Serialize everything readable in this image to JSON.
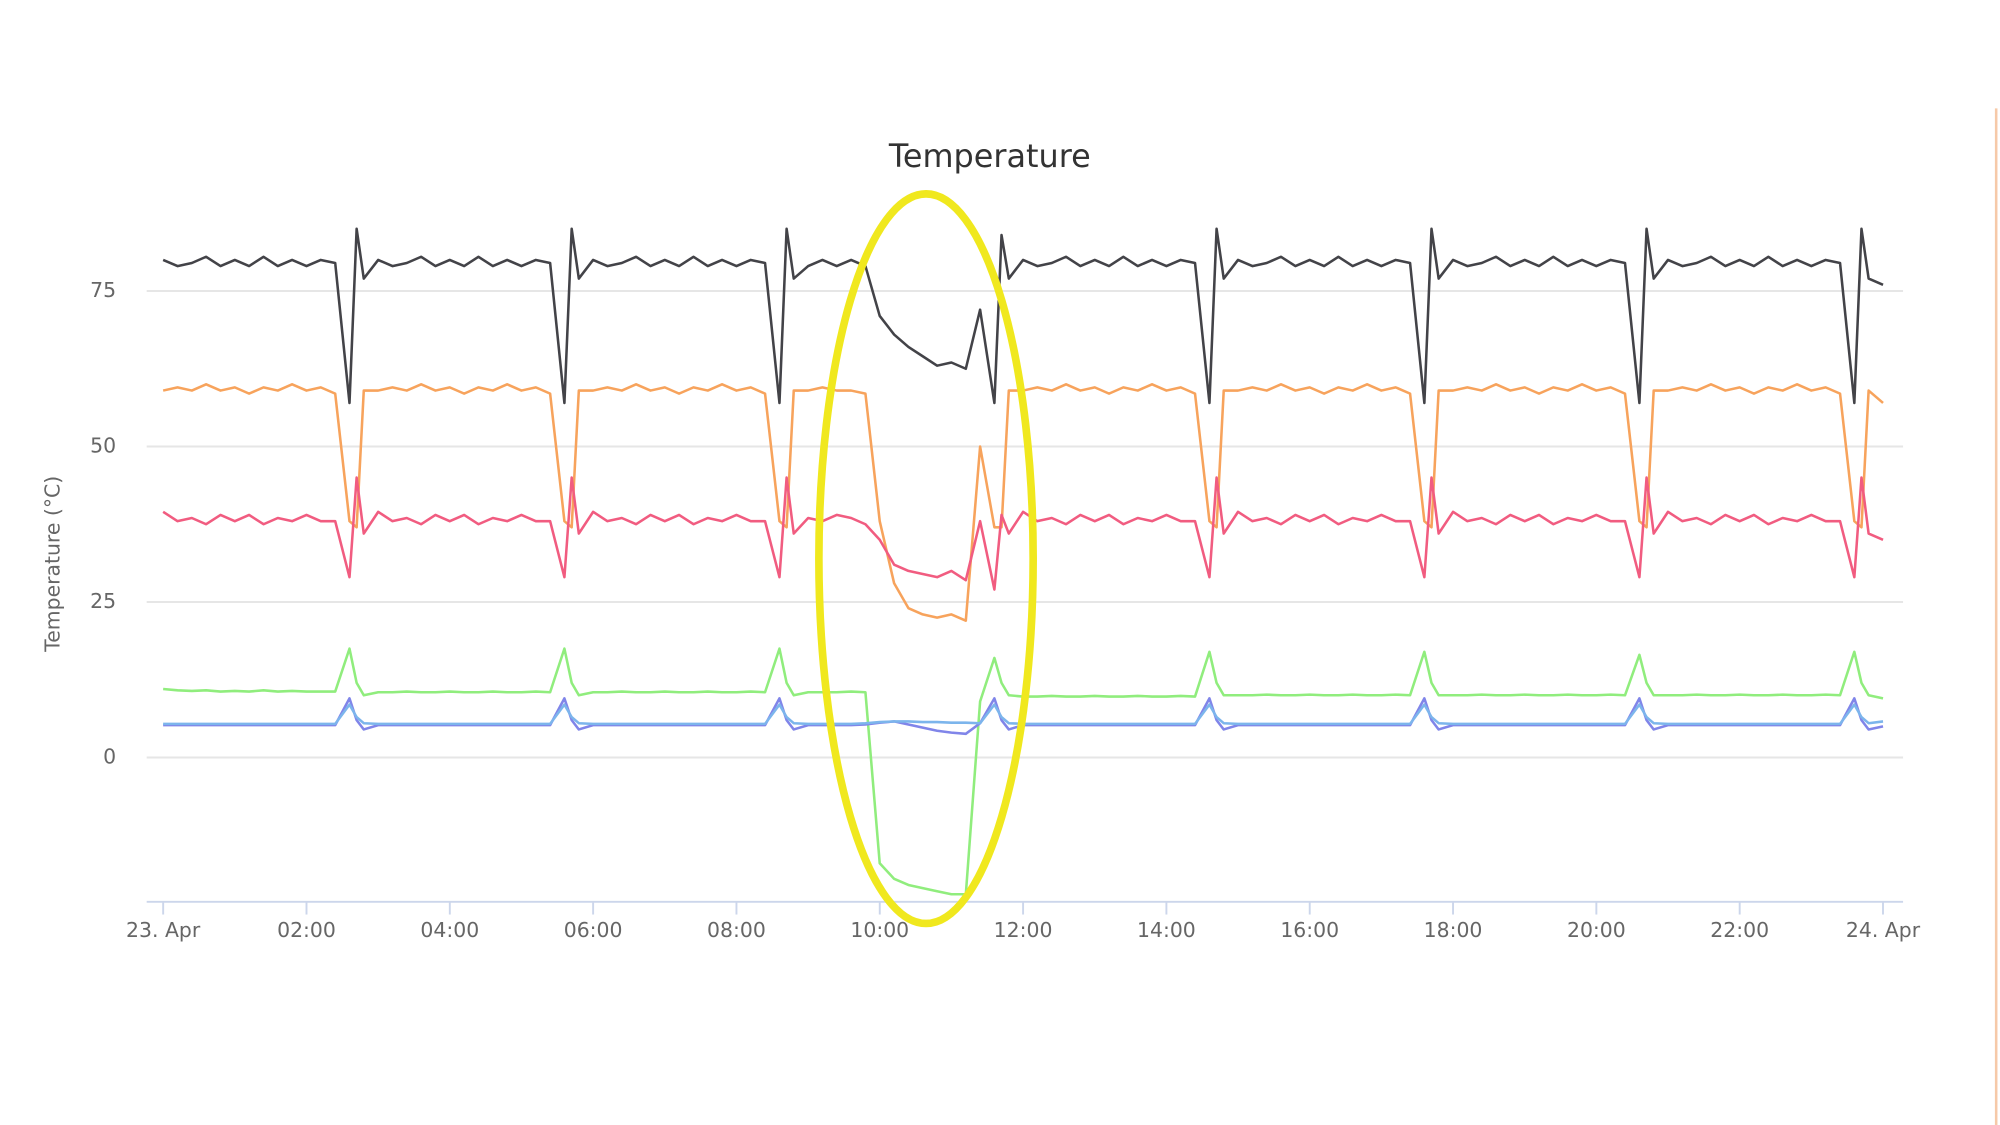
{
  "chart_data": {
    "type": "line",
    "title": "Temperature",
    "y_label": "Temperature (°C)",
    "x": [
      0,
      0.2,
      0.4,
      0.6,
      0.8,
      1,
      1.2,
      1.4,
      1.6,
      1.8,
      2,
      2.2,
      2.4,
      2.6,
      2.7,
      2.8,
      3,
      3.2,
      3.4,
      3.6,
      3.8,
      4,
      4.2,
      4.4,
      4.6,
      4.8,
      5,
      5.2,
      5.4,
      5.6,
      5.7,
      5.8,
      6,
      6.2,
      6.4,
      6.6,
      6.8,
      7,
      7.2,
      7.4,
      7.6,
      7.8,
      8,
      8.2,
      8.4,
      8.6,
      8.7,
      8.8,
      9,
      9.2,
      9.4,
      9.6,
      9.8,
      10,
      10.2,
      10.4,
      10.6,
      10.8,
      11,
      11.2,
      11.4,
      11.6,
      11.7,
      11.8,
      12,
      12.2,
      12.4,
      12.6,
      12.8,
      13,
      13.2,
      13.4,
      13.6,
      13.8,
      14,
      14.2,
      14.4,
      14.6,
      14.7,
      14.8,
      15,
      15.2,
      15.4,
      15.6,
      15.8,
      16,
      16.2,
      16.4,
      16.6,
      16.8,
      17,
      17.2,
      17.4,
      17.6,
      17.7,
      17.8,
      18,
      18.2,
      18.4,
      18.6,
      18.8,
      19,
      19.2,
      19.4,
      19.6,
      19.8,
      20,
      20.2,
      20.4,
      20.6,
      20.7,
      20.8,
      21,
      21.2,
      21.4,
      21.6,
      21.8,
      22,
      22.2,
      22.4,
      22.6,
      22.8,
      23,
      23.2,
      23.4,
      23.6,
      23.7,
      23.8,
      24
    ],
    "series": [
      {
        "color": "#434348",
        "values": [
          80,
          79,
          79.5,
          80.5,
          79,
          80,
          79,
          80.5,
          79,
          80,
          79,
          80,
          79.5,
          57,
          85,
          77,
          80,
          79,
          79.5,
          80.5,
          79,
          80,
          79,
          80.5,
          79,
          80,
          79,
          80,
          79.5,
          57,
          85,
          77,
          80,
          79,
          79.5,
          80.5,
          79,
          80,
          79,
          80.5,
          79,
          80,
          79,
          80,
          79.5,
          57,
          85,
          77,
          79,
          80,
          79,
          80,
          79,
          71,
          68,
          66,
          64.5,
          63,
          63.5,
          62.5,
          72,
          57,
          84,
          77,
          80,
          79,
          79.5,
          80.5,
          79,
          80,
          79,
          80.5,
          79,
          80,
          79,
          80,
          79.5,
          57,
          85,
          77,
          80,
          79,
          79.5,
          80.5,
          79,
          80,
          79,
          80.5,
          79,
          80,
          79,
          80,
          79.5,
          57,
          85,
          77,
          80,
          79,
          79.5,
          80.5,
          79,
          80,
          79,
          80.5,
          79,
          80,
          79,
          80,
          79.5,
          57,
          85,
          77,
          80,
          79,
          79.5,
          80.5,
          79,
          80,
          79,
          80.5,
          79,
          80,
          79,
          80,
          79.5,
          57,
          85,
          77,
          76
        ]
      },
      {
        "color": "#f7a35c",
        "values": [
          59,
          59.5,
          59,
          60,
          59,
          59.5,
          58.5,
          59.5,
          59,
          60,
          59,
          59.5,
          58.5,
          38,
          37,
          59,
          59,
          59.5,
          59,
          60,
          59,
          59.5,
          58.5,
          59.5,
          59,
          60,
          59,
          59.5,
          58.5,
          38,
          37,
          59,
          59,
          59.5,
          59,
          60,
          59,
          59.5,
          58.5,
          59.5,
          59,
          60,
          59,
          59.5,
          58.5,
          38,
          37,
          59,
          59,
          59.5,
          59,
          59,
          58.5,
          38,
          28,
          24,
          23,
          22.5,
          23,
          22,
          50,
          37,
          37,
          59,
          59,
          59.5,
          59,
          60,
          59,
          59.5,
          58.5,
          59.5,
          59,
          60,
          59,
          59.5,
          58.5,
          38,
          37,
          59,
          59,
          59.5,
          59,
          60,
          59,
          59.5,
          58.5,
          59.5,
          59,
          60,
          59,
          59.5,
          58.5,
          38,
          37,
          59,
          59,
          59.5,
          59,
          60,
          59,
          59.5,
          58.5,
          59.5,
          59,
          60,
          59,
          59.5,
          58.5,
          38,
          37,
          59,
          59,
          59.5,
          59,
          60,
          59,
          59.5,
          58.5,
          59.5,
          59,
          60,
          59,
          59.5,
          58.5,
          38,
          37,
          59,
          57
        ]
      },
      {
        "color": "#f15c80",
        "values": [
          39.5,
          38,
          38.5,
          37.5,
          39,
          38,
          39,
          37.5,
          38.5,
          38,
          39,
          38,
          38,
          29,
          45,
          36,
          39.5,
          38,
          38.5,
          37.5,
          39,
          38,
          39,
          37.5,
          38.5,
          38,
          39,
          38,
          38,
          29,
          45,
          36,
          39.5,
          38,
          38.5,
          37.5,
          39,
          38,
          39,
          37.5,
          38.5,
          38,
          39,
          38,
          38,
          29,
          45,
          36,
          38.5,
          38,
          39,
          38.5,
          37.5,
          35,
          31,
          30,
          29.5,
          29,
          30,
          28.5,
          38,
          27,
          39,
          36,
          39.5,
          38,
          38.5,
          37.5,
          39,
          38,
          39,
          37.5,
          38.5,
          38,
          39,
          38,
          38,
          29,
          45,
          36,
          39.5,
          38,
          38.5,
          37.5,
          39,
          38,
          39,
          37.5,
          38.5,
          38,
          39,
          38,
          38,
          29,
          45,
          36,
          39.5,
          38,
          38.5,
          37.5,
          39,
          38,
          39,
          37.5,
          38.5,
          38,
          39,
          38,
          38,
          29,
          45,
          36,
          39.5,
          38,
          38.5,
          37.5,
          39,
          38,
          39,
          37.5,
          38.5,
          38,
          39,
          38,
          38,
          29,
          45,
          36,
          35
        ]
      },
      {
        "color": "#90ed7d",
        "values": [
          11,
          10.8,
          10.7,
          10.8,
          10.6,
          10.7,
          10.6,
          10.8,
          10.6,
          10.7,
          10.6,
          10.6,
          10.6,
          17.5,
          12,
          10,
          10.5,
          10.5,
          10.6,
          10.5,
          10.5,
          10.6,
          10.5,
          10.5,
          10.6,
          10.5,
          10.5,
          10.6,
          10.5,
          17.5,
          12,
          10,
          10.5,
          10.5,
          10.6,
          10.5,
          10.5,
          10.6,
          10.5,
          10.5,
          10.6,
          10.5,
          10.5,
          10.6,
          10.5,
          17.5,
          12,
          10,
          10.5,
          10.5,
          10.5,
          10.6,
          10.5,
          -17,
          -19.5,
          -20.5,
          -21,
          -21.5,
          -22,
          -22,
          9,
          16,
          12,
          10,
          9.8,
          9.8,
          9.9,
          9.8,
          9.8,
          9.9,
          9.8,
          9.8,
          9.9,
          9.8,
          9.8,
          9.9,
          9.8,
          17,
          12,
          10,
          10,
          10,
          10.1,
          10,
          10,
          10.1,
          10,
          10,
          10.1,
          10,
          10,
          10.1,
          10,
          17,
          12,
          10,
          10,
          10,
          10.1,
          10,
          10,
          10.1,
          10,
          10,
          10.1,
          10,
          10,
          10.1,
          10,
          16.5,
          12,
          10,
          10,
          10,
          10.1,
          10,
          10,
          10.1,
          10,
          10,
          10.1,
          10,
          10,
          10.1,
          10,
          17,
          12,
          10,
          9.5
        ]
      },
      {
        "color": "#8085e9",
        "values": [
          5.2,
          5.2,
          5.2,
          5.2,
          5.2,
          5.2,
          5.2,
          5.2,
          5.2,
          5.2,
          5.2,
          5.2,
          5.2,
          9.5,
          6,
          4.5,
          5.2,
          5.2,
          5.2,
          5.2,
          5.2,
          5.2,
          5.2,
          5.2,
          5.2,
          5.2,
          5.2,
          5.2,
          5.2,
          9.5,
          6,
          4.5,
          5.2,
          5.2,
          5.2,
          5.2,
          5.2,
          5.2,
          5.2,
          5.2,
          5.2,
          5.2,
          5.2,
          5.2,
          5.2,
          9.5,
          6,
          4.5,
          5.2,
          5.2,
          5.2,
          5.2,
          5.3,
          5.6,
          5.8,
          5.3,
          4.8,
          4.3,
          4,
          3.8,
          5.5,
          9.5,
          6,
          4.5,
          5.2,
          5.2,
          5.2,
          5.2,
          5.2,
          5.2,
          5.2,
          5.2,
          5.2,
          5.2,
          5.2,
          5.2,
          5.2,
          9.5,
          6,
          4.5,
          5.2,
          5.2,
          5.2,
          5.2,
          5.2,
          5.2,
          5.2,
          5.2,
          5.2,
          5.2,
          5.2,
          5.2,
          5.2,
          9.5,
          6,
          4.5,
          5.2,
          5.2,
          5.2,
          5.2,
          5.2,
          5.2,
          5.2,
          5.2,
          5.2,
          5.2,
          5.2,
          5.2,
          5.2,
          9.5,
          6,
          4.5,
          5.2,
          5.2,
          5.2,
          5.2,
          5.2,
          5.2,
          5.2,
          5.2,
          5.2,
          5.2,
          5.2,
          5.2,
          5.2,
          9.5,
          6,
          4.5,
          5
        ]
      },
      {
        "color": "#7cb5ec",
        "values": [
          5.4,
          5.4,
          5.4,
          5.4,
          5.4,
          5.4,
          5.4,
          5.4,
          5.4,
          5.4,
          5.4,
          5.4,
          5.4,
          8.5,
          6.5,
          5.5,
          5.4,
          5.4,
          5.4,
          5.4,
          5.4,
          5.4,
          5.4,
          5.4,
          5.4,
          5.4,
          5.4,
          5.4,
          5.4,
          8.5,
          6.5,
          5.5,
          5.4,
          5.4,
          5.4,
          5.4,
          5.4,
          5.4,
          5.4,
          5.4,
          5.4,
          5.4,
          5.4,
          5.4,
          5.4,
          8.5,
          6.5,
          5.5,
          5.4,
          5.4,
          5.4,
          5.4,
          5.5,
          5.7,
          5.8,
          5.8,
          5.7,
          5.7,
          5.6,
          5.6,
          5.5,
          8.5,
          6.5,
          5.5,
          5.4,
          5.4,
          5.4,
          5.4,
          5.4,
          5.4,
          5.4,
          5.4,
          5.4,
          5.4,
          5.4,
          5.4,
          5.4,
          8.5,
          6.5,
          5.5,
          5.4,
          5.4,
          5.4,
          5.4,
          5.4,
          5.4,
          5.4,
          5.4,
          5.4,
          5.4,
          5.4,
          5.4,
          5.4,
          8.5,
          6.5,
          5.5,
          5.4,
          5.4,
          5.4,
          5.4,
          5.4,
          5.4,
          5.4,
          5.4,
          5.4,
          5.4,
          5.4,
          5.4,
          5.4,
          8.5,
          6.5,
          5.5,
          5.4,
          5.4,
          5.4,
          5.4,
          5.4,
          5.4,
          5.4,
          5.4,
          5.4,
          5.4,
          5.4,
          5.4,
          5.4,
          8.5,
          6.5,
          5.5,
          5.8
        ]
      }
    ],
    "xlim": [
      -0.23,
      24.28
    ],
    "xticks": [
      {
        "value": 0,
        "label": "23. Apr"
      },
      {
        "value": 2,
        "label": "02:00"
      },
      {
        "value": 4,
        "label": "04:00"
      },
      {
        "value": 6,
        "label": "06:00"
      },
      {
        "value": 8,
        "label": "08:00"
      },
      {
        "value": 10,
        "label": "10:00"
      },
      {
        "value": 12,
        "label": "12:00"
      },
      {
        "value": 14,
        "label": "14:00"
      },
      {
        "value": 16,
        "label": "16:00"
      },
      {
        "value": 18,
        "label": "18:00"
      },
      {
        "value": 20,
        "label": "20:00"
      },
      {
        "value": 22,
        "label": "22:00"
      },
      {
        "value": 24,
        "label": "24. Apr"
      }
    ],
    "ylim": [
      -23.2,
      90
    ],
    "yticks": [
      0,
      25,
      50,
      75
    ],
    "grid": true
  }
}
